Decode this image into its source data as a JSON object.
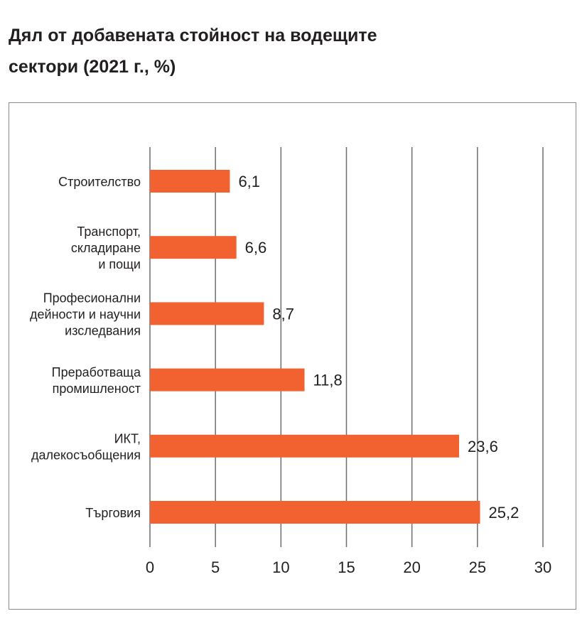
{
  "title_lines": [
    "Дял от добавената стойност на водещите",
    "сектори (2021 г., %)"
  ],
  "chart_data": {
    "type": "bar",
    "orientation": "horizontal",
    "title": "Дял от добавената стойност на водещите сектори (2021 г., %)",
    "categories": [
      [
        "Строителство"
      ],
      [
        "Транспорт,",
        "складиране",
        "и пощи"
      ],
      [
        "Професионални",
        "дейности и научни",
        "изследвания"
      ],
      [
        "Преработваща",
        "промишленост"
      ],
      [
        "ИКТ,",
        "далекосъобщения"
      ],
      [
        "Търговия"
      ]
    ],
    "values": [
      6.1,
      6.6,
      8.7,
      11.8,
      23.6,
      25.2
    ],
    "value_labels": [
      "6,1",
      "6,6",
      "8,7",
      "11,8",
      "23,6",
      "25,2"
    ],
    "xlim": [
      0,
      30
    ],
    "xticks": [
      0,
      5,
      10,
      15,
      20,
      25,
      30
    ],
    "grid": true,
    "bar_color": "#f26130",
    "grid_color": "#6d6e71"
  }
}
